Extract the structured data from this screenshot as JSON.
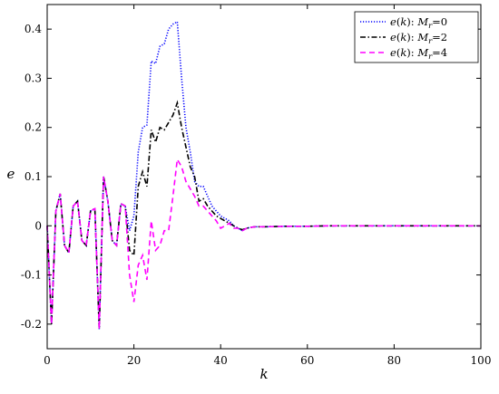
{
  "chart_data": {
    "type": "line",
    "title": "",
    "xlabel": "k",
    "ylabel": "e",
    "xlim": [
      0,
      100
    ],
    "ylim": [
      -0.25,
      0.45
    ],
    "xticks": [
      0,
      20,
      40,
      60,
      80,
      100
    ],
    "yticks": [
      -0.2,
      -0.1,
      0,
      0.1,
      0.2,
      0.3,
      0.4
    ],
    "ytick_labels": [
      "-0.2",
      "-0.1",
      "0",
      "0.1",
      "0.2",
      "0.3",
      "0.4"
    ],
    "grid": false,
    "legend_position": "top-right",
    "series": [
      {
        "name": "e(k): M_r=0",
        "legend": {
          "fn": "e",
          "arg": "k",
          "sym": "M",
          "sub": "r",
          "eq": "=0"
        },
        "color": "#0000ff",
        "style": "dotted",
        "x": [
          0,
          1,
          2,
          3,
          4,
          5,
          6,
          7,
          8,
          9,
          10,
          11,
          12,
          13,
          14,
          15,
          16,
          17,
          18,
          19,
          20,
          21,
          22,
          23,
          24,
          25,
          26,
          27,
          28,
          29,
          30,
          31,
          32,
          33,
          34,
          35,
          36,
          37,
          38,
          39,
          40,
          41,
          42,
          43,
          44,
          45,
          46,
          47,
          48,
          50,
          55,
          60,
          65,
          70,
          75,
          80,
          85,
          90,
          95,
          100
        ],
        "y": [
          0,
          -0.2,
          0.03,
          0.065,
          -0.04,
          -0.055,
          0.04,
          0.05,
          -0.03,
          -0.04,
          0.03,
          0.035,
          -0.21,
          0.1,
          0.05,
          -0.03,
          -0.04,
          0.045,
          0.04,
          -0.01,
          0.02,
          0.15,
          0.2,
          0.205,
          0.335,
          0.33,
          0.365,
          0.37,
          0.4,
          0.41,
          0.415,
          0.3,
          0.2,
          0.15,
          0.09,
          0.08,
          0.08,
          0.06,
          0.04,
          0.03,
          0.02,
          0.015,
          0.01,
          0.0,
          -0.005,
          -0.01,
          -0.005,
          -0.003,
          -0.002,
          -0.002,
          -0.001,
          -0.001,
          0,
          0,
          0,
          0,
          0,
          0,
          0,
          0
        ]
      },
      {
        "name": "e(k): M_r=2",
        "legend": {
          "fn": "e",
          "arg": "k",
          "sym": "M",
          "sub": "r",
          "eq": "=2"
        },
        "color": "#000000",
        "style": "dashdot",
        "x": [
          0,
          1,
          2,
          3,
          4,
          5,
          6,
          7,
          8,
          9,
          10,
          11,
          12,
          13,
          14,
          15,
          16,
          17,
          18,
          19,
          20,
          21,
          22,
          23,
          24,
          25,
          26,
          27,
          28,
          29,
          30,
          31,
          32,
          33,
          34,
          35,
          36,
          37,
          38,
          39,
          40,
          41,
          42,
          43,
          44,
          45,
          46,
          47,
          48,
          50,
          55,
          60,
          65,
          70,
          75,
          80,
          85,
          90,
          95,
          100
        ],
        "y": [
          0,
          -0.2,
          0.03,
          0.065,
          -0.04,
          -0.055,
          0.04,
          0.05,
          -0.03,
          -0.04,
          0.03,
          0.035,
          -0.21,
          0.1,
          0.05,
          -0.03,
          -0.04,
          0.045,
          0.04,
          -0.05,
          -0.06,
          0.08,
          0.11,
          0.08,
          0.195,
          0.17,
          0.2,
          0.195,
          0.21,
          0.225,
          0.25,
          0.2,
          0.16,
          0.12,
          0.1,
          0.05,
          0.055,
          0.04,
          0.03,
          0.02,
          0.015,
          0.01,
          0.005,
          0.0,
          -0.005,
          -0.008,
          -0.005,
          -0.003,
          -0.002,
          -0.002,
          -0.001,
          -0.001,
          0,
          0,
          0,
          0,
          0,
          0,
          0,
          0
        ]
      },
      {
        "name": "e(k): M_r=4",
        "legend": {
          "fn": "e",
          "arg": "k",
          "sym": "M",
          "sub": "r",
          "eq": "=4"
        },
        "color": "#ff00ff",
        "style": "dashed",
        "x": [
          0,
          1,
          2,
          3,
          4,
          5,
          6,
          7,
          8,
          9,
          10,
          11,
          12,
          13,
          14,
          15,
          16,
          17,
          18,
          19,
          20,
          21,
          22,
          23,
          24,
          25,
          26,
          27,
          28,
          29,
          30,
          31,
          32,
          33,
          34,
          35,
          36,
          37,
          38,
          39,
          40,
          41,
          42,
          43,
          44,
          45,
          46,
          47,
          48,
          50,
          55,
          60,
          65,
          70,
          75,
          80,
          85,
          90,
          95,
          100
        ],
        "y": [
          0,
          -0.2,
          0.03,
          0.065,
          -0.04,
          -0.055,
          0.04,
          0.05,
          -0.03,
          -0.04,
          0.03,
          0.035,
          -0.21,
          0.1,
          0.05,
          -0.03,
          -0.04,
          0.045,
          0.04,
          -0.1,
          -0.155,
          -0.08,
          -0.06,
          -0.11,
          0.01,
          -0.05,
          -0.04,
          -0.01,
          -0.01,
          0.06,
          0.135,
          0.12,
          0.09,
          0.075,
          0.06,
          0.04,
          0.04,
          0.03,
          0.02,
          0.01,
          -0.005,
          0.0,
          0.005,
          -0.005,
          -0.005,
          -0.01,
          -0.005,
          -0.003,
          -0.002,
          -0.002,
          -0.001,
          -0.001,
          0,
          0,
          0,
          0,
          0,
          0,
          0,
          0
        ]
      }
    ]
  }
}
